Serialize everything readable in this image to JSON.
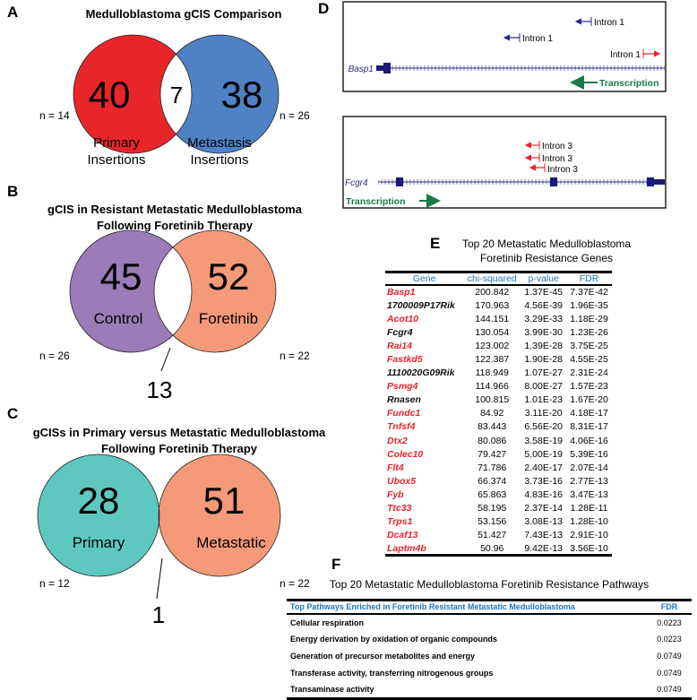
{
  "panelA": {
    "label": "A",
    "title": "Medulloblastoma gCIS Comparison",
    "left": "40",
    "overlap": "7",
    "right": "38",
    "n_left": "n = 14",
    "n_right": "n = 26",
    "left_label1": "Primary",
    "left_label2": "Insertions",
    "right_label1": "Metastasis",
    "right_label2": "Insertions",
    "colors": {
      "left": "#e8262a",
      "right": "#4f82c4"
    }
  },
  "panelB": {
    "label": "B",
    "title1": "gCIS in Resistant Metastatic Medulloblastoma",
    "title2": "Following Foretinib Therapy",
    "left": "45",
    "left_label": "Control",
    "right": "52",
    "right_label": "Foretinib",
    "overlap": "13",
    "n_left": "n = 26",
    "n_right": "n = 22",
    "colors": {
      "left": "#9b7bb8",
      "right": "#f49a78"
    }
  },
  "panelC": {
    "label": "C",
    "title1": "gCISs in Primary versus Metastatic Medulloblastoma",
    "title2": "Following Foretinib Therapy",
    "left": "28",
    "left_label": "Primary",
    "right": "51",
    "right_label": "Metastatic",
    "overlap": "1",
    "n_left": "n = 12",
    "n_right": "n = 22",
    "colors": {
      "left": "#5ec8c0",
      "right": "#f49a78"
    }
  },
  "panelD": {
    "label": "D",
    "track1": {
      "gene": "Basp1",
      "insertions": [
        "Intron 1",
        "Intron 1",
        "Intron 1"
      ],
      "direction": "Transcription"
    },
    "track2": {
      "gene": "Fcgr4",
      "insertions": [
        "Intron 3",
        "Intron 3",
        "Intron 3"
      ],
      "direction": "Transcription"
    }
  },
  "panelE": {
    "label": "E",
    "title1": "Top 20 Metastatic Medulloblastoma",
    "title2": "Foretinib Resistance Genes",
    "headers": [
      "Gene",
      "chi-squared",
      "p-value",
      "FDR"
    ],
    "rows": [
      {
        "gene": "Basp1",
        "color": "#e8232a",
        "chi": "200.842",
        "p": "1.37E-45",
        "fdr": "7.37E-42"
      },
      {
        "gene": "1700009P17Rik",
        "color": "#111111",
        "chi": "170.963",
        "p": "4.56E-39",
        "fdr": "1.96E-35"
      },
      {
        "gene": "Acot10",
        "color": "#e8232a",
        "chi": "144.151",
        "p": "3.29E-33",
        "fdr": "1.18E-29"
      },
      {
        "gene": "Fcgr4",
        "color": "#111111",
        "chi": "130.054",
        "p": "3.99E-30",
        "fdr": "1.23E-26"
      },
      {
        "gene": "Rai14",
        "color": "#e8232a",
        "chi": "123.002",
        "p": "1.39E-28",
        "fdr": "3.75E-25"
      },
      {
        "gene": "Fastkd5",
        "color": "#e8232a",
        "chi": "122.387",
        "p": "1.90E-28",
        "fdr": "4.55E-25"
      },
      {
        "gene": "1110020G09Rik",
        "color": "#111111",
        "chi": "118.949",
        "p": "1.07E-27",
        "fdr": "2.31E-24"
      },
      {
        "gene": "Psmg4",
        "color": "#e8232a",
        "chi": "114.966",
        "p": "8.00E-27",
        "fdr": "1.57E-23"
      },
      {
        "gene": "Rnasen",
        "color": "#111111",
        "chi": "100.815",
        "p": "1.01E-23",
        "fdr": "1.67E-20"
      },
      {
        "gene": "Fundc1",
        "color": "#e8232a",
        "chi": "84.92",
        "p": "3.11E-20",
        "fdr": "4.18E-17"
      },
      {
        "gene": "Tnfsf4",
        "color": "#e8232a",
        "chi": "83.443",
        "p": "6.56E-20",
        "fdr": "8.31E-17"
      },
      {
        "gene": "Dtx2",
        "color": "#e8232a",
        "chi": "80.086",
        "p": "3.58E-19",
        "fdr": "4.06E-16"
      },
      {
        "gene": "Colec10",
        "color": "#e8232a",
        "chi": "79.427",
        "p": "5.00E-19",
        "fdr": "5.39E-16"
      },
      {
        "gene": "Flt4",
        "color": "#e8232a",
        "chi": "71.786",
        "p": "2.40E-17",
        "fdr": "2.07E-14"
      },
      {
        "gene": "Ubox5",
        "color": "#e8232a",
        "chi": "66.374",
        "p": "3.73E-16",
        "fdr": "2.77E-13"
      },
      {
        "gene": "Fyb",
        "color": "#e8232a",
        "chi": "65.863",
        "p": "4.83E-16",
        "fdr": "3.47E-13"
      },
      {
        "gene": "Ttc33",
        "color": "#e8232a",
        "chi": "58.195",
        "p": "2.37E-14",
        "fdr": "1.28E-11"
      },
      {
        "gene": "Trps1",
        "color": "#e8232a",
        "chi": "53.156",
        "p": "3.08E-13",
        "fdr": "1.28E-10"
      },
      {
        "gene": "Dcaf13",
        "color": "#e8232a",
        "chi": "51.427",
        "p": "7.43E-13",
        "fdr": "2.91E-10"
      },
      {
        "gene": "Laptm4b",
        "color": "#e8232a",
        "chi": "50.96",
        "p": "9.42E-13",
        "fdr": "3.56E-10"
      }
    ]
  },
  "panelF": {
    "label": "F",
    "title": "Top 20 Metastatic Medulloblastoma Foretinib Resistance Pathways",
    "headers": [
      "Top Pathways Enriched in Foretinib Resistant Metastatic Medulloblastoma",
      "FDR"
    ],
    "rows": [
      {
        "pathway": "Cellular respiration",
        "fdr": "0.0223"
      },
      {
        "pathway": "Energy derivation by oxidation of organic compounds",
        "fdr": "0.0223"
      },
      {
        "pathway": "Generation of precursor metabolites and energy",
        "fdr": "0.0749"
      },
      {
        "pathway": "Transferase activity, transferring nitrogenous groups",
        "fdr": "0.0749"
      },
      {
        "pathway": "Transaminase activity",
        "fdr": "0.0749"
      }
    ]
  }
}
